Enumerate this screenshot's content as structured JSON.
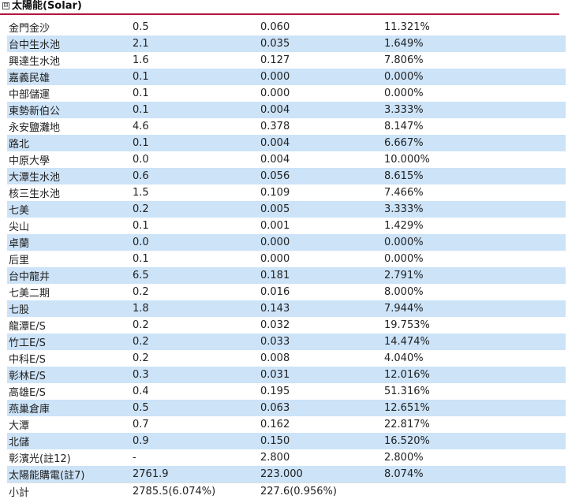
{
  "section": {
    "toggle_symbol": "⊟",
    "title": "太陽能(Solar)",
    "accent_color": "#b3143c",
    "row_alt_color": "#cce3f8"
  },
  "rows": [
    [
      "金門金沙",
      "0.5",
      "0.060",
      "11.321%"
    ],
    [
      "台中生水池",
      "2.1",
      "0.035",
      "1.649%"
    ],
    [
      "興達生水池",
      "1.6",
      "0.127",
      "7.806%"
    ],
    [
      "嘉義民雄",
      "0.1",
      "0.000",
      "0.000%"
    ],
    [
      "中部儲運",
      "0.1",
      "0.000",
      "0.000%"
    ],
    [
      "東勢新伯公",
      "0.1",
      "0.004",
      "3.333%"
    ],
    [
      "永安鹽灘地",
      "4.6",
      "0.378",
      "8.147%"
    ],
    [
      "路北",
      "0.1",
      "0.004",
      "6.667%"
    ],
    [
      "中原大學",
      "0.0",
      "0.004",
      "10.000%"
    ],
    [
      "大潭生水池",
      "0.6",
      "0.056",
      "8.615%"
    ],
    [
      "核三生水池",
      "1.5",
      "0.109",
      "7.466%"
    ],
    [
      "七美",
      "0.2",
      "0.005",
      "3.333%"
    ],
    [
      "尖山",
      "0.1",
      "0.001",
      "1.429%"
    ],
    [
      "卓蘭",
      "0.0",
      "0.000",
      "0.000%"
    ],
    [
      "后里",
      "0.1",
      "0.000",
      "0.000%"
    ],
    [
      "台中龍井",
      "6.5",
      "0.181",
      "2.791%"
    ],
    [
      "七美二期",
      "0.2",
      "0.016",
      "8.000%"
    ],
    [
      "七股",
      "1.8",
      "0.143",
      "7.944%"
    ],
    [
      "龍潭E/S",
      "0.2",
      "0.032",
      "19.753%"
    ],
    [
      "竹工E/S",
      "0.2",
      "0.033",
      "14.474%"
    ],
    [
      "中科E/S",
      "0.2",
      "0.008",
      "4.040%"
    ],
    [
      "彰林E/S",
      "0.3",
      "0.031",
      "12.016%"
    ],
    [
      "高雄E/S",
      "0.4",
      "0.195",
      "51.316%"
    ],
    [
      "燕巢倉庫",
      "0.5",
      "0.063",
      "12.651%"
    ],
    [
      "大潭",
      "0.7",
      "0.162",
      "22.817%"
    ],
    [
      "北儲",
      "0.9",
      "0.150",
      "16.520%"
    ],
    [
      "彰濱光(註12)",
      "-",
      "2.800",
      "2.800%"
    ],
    [
      "太陽能購電(註7)",
      "2761.9",
      "223.000",
      "8.074%"
    ]
  ],
  "total": [
    "小計",
    "2785.5(6.074%)",
    "227.6(0.956%)",
    ""
  ]
}
